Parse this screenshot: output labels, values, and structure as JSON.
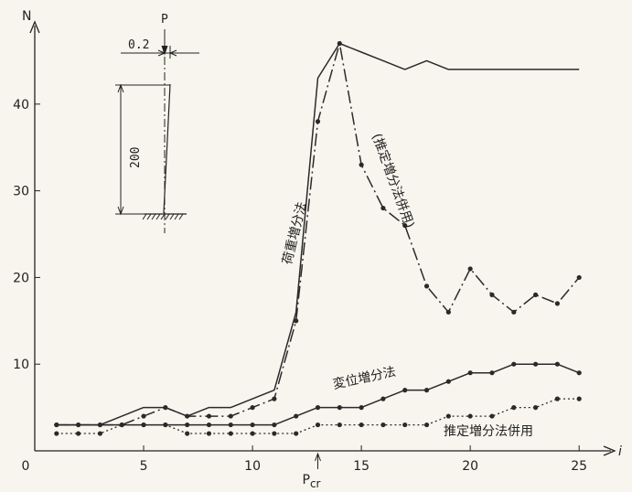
{
  "chart_data": {
    "type": "line",
    "ylabel": "N",
    "xlabel": "i",
    "xlim": [
      0,
      26
    ],
    "ylim": [
      0,
      48
    ],
    "x_ticks": [
      0,
      5,
      10,
      15,
      20,
      25
    ],
    "y_ticks": [
      10,
      20,
      30,
      40
    ],
    "pcr_label": "P",
    "pcr_sub": "cr",
    "pcr_x": 13,
    "series": [
      {
        "name": "荷重増分法",
        "style": "solid",
        "x": [
          1,
          2,
          3,
          4,
          5,
          6,
          7,
          8,
          9,
          10,
          11,
          12,
          13,
          14,
          15,
          16,
          17,
          18,
          19,
          20,
          21,
          22,
          23,
          24,
          25
        ],
        "y": [
          3,
          3,
          3,
          4,
          5,
          5,
          4,
          5,
          5,
          6,
          7,
          16,
          43,
          47,
          46,
          45,
          44,
          45,
          44,
          44,
          44,
          44,
          44,
          44,
          44
        ]
      },
      {
        "name": "(推定増分法併用)",
        "style": "dash-dot",
        "x": [
          1,
          2,
          3,
          4,
          5,
          6,
          7,
          8,
          9,
          10,
          11,
          12,
          13,
          14,
          15,
          16,
          17,
          18,
          19,
          20,
          21,
          22,
          23,
          24,
          25
        ],
        "y": [
          3,
          3,
          3,
          3,
          4,
          5,
          4,
          4,
          4,
          5,
          6,
          15,
          38,
          47,
          33,
          28,
          26,
          19,
          16,
          21,
          18,
          16,
          18,
          17,
          20
        ]
      },
      {
        "name": "変位増分法",
        "style": "solid-marker",
        "x": [
          1,
          2,
          3,
          4,
          5,
          6,
          7,
          8,
          9,
          10,
          11,
          12,
          13,
          14,
          15,
          16,
          17,
          18,
          19,
          20,
          21,
          22,
          23,
          24,
          25
        ],
        "y": [
          3,
          3,
          3,
          3,
          3,
          3,
          3,
          3,
          3,
          3,
          3,
          4,
          5,
          5,
          5,
          6,
          7,
          7,
          8,
          9,
          9,
          10,
          10,
          10,
          9
        ]
      },
      {
        "name": "推定増分法併用",
        "style": "dotted",
        "x": [
          1,
          2,
          3,
          4,
          5,
          6,
          7,
          8,
          9,
          10,
          11,
          12,
          13,
          14,
          15,
          16,
          17,
          18,
          19,
          20,
          21,
          22,
          23,
          24,
          25
        ],
        "y": [
          2,
          2,
          2,
          3,
          3,
          3,
          2,
          2,
          2,
          2,
          2,
          2,
          3,
          3,
          3,
          3,
          3,
          3,
          4,
          4,
          4,
          5,
          5,
          6,
          6
        ]
      }
    ],
    "inset": {
      "load_label": "P",
      "offset_label": "0.2",
      "height_label": "200"
    }
  }
}
